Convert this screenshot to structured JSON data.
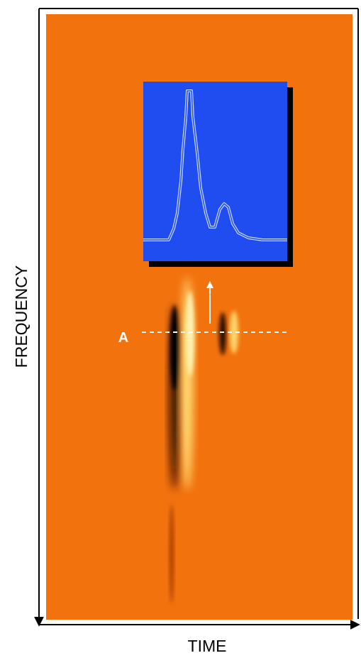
{
  "axes": {
    "y_label": "FREQUENCY",
    "x_label": "TIME"
  },
  "marker": {
    "label": "A"
  }
}
